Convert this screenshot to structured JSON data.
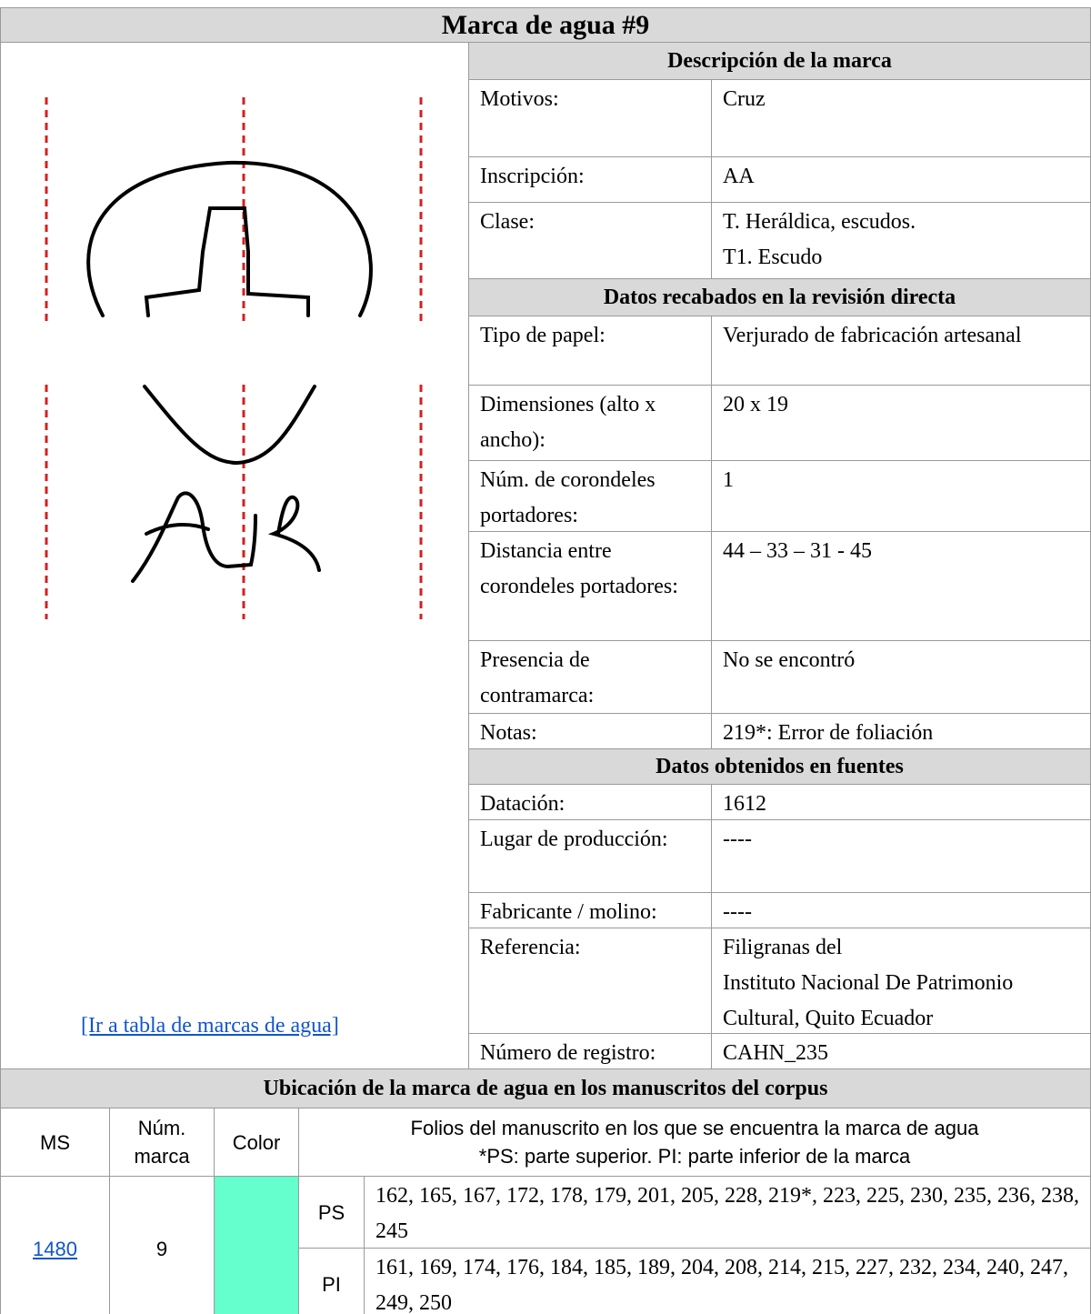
{
  "title": "Marca de agua #9",
  "link": "[Ir a tabla de marcas de agua]",
  "sections": [
    {
      "heading": "Descripción de la marca",
      "rows": [
        [
          "Motivos:",
          [
            "Cruz"
          ]
        ],
        [
          "Inscripción:",
          [
            "AA"
          ]
        ],
        [
          "Clase:",
          [
            "T. Heráldica, escudos.",
            "T1. Escudo"
          ]
        ]
      ]
    },
    {
      "heading": "Datos recabados en la revisión directa",
      "rows": [
        [
          "Tipo de papel:",
          [
            "Verjurado de fabricación artesanal"
          ]
        ],
        [
          "Dimensiones (alto x ancho):",
          [
            "20 x 19"
          ]
        ],
        [
          "Núm. de corondeles portadores:",
          [
            "1"
          ]
        ],
        [
          "Distancia entre corondeles portadores:",
          [
            "44 – 33 – 31 - 45"
          ]
        ],
        [
          "Presencia de contramarca:",
          [
            "No se encontró"
          ]
        ],
        [
          "Notas:",
          [
            "219*: Error de foliación"
          ]
        ]
      ]
    },
    {
      "heading": "Datos obtenidos en fuentes",
      "rows": [
        [
          "Datación:",
          [
            "1612"
          ]
        ],
        [
          "Lugar de producción:",
          [
            "----"
          ]
        ],
        [
          "Fabricante / molino:",
          [
            "----"
          ]
        ],
        [
          "Referencia:",
          [
            "Filigranas del",
            "Instituto Nacional De Patrimonio Cultural, Quito Ecuador"
          ]
        ],
        [
          "Número de registro:",
          [
            "CAHN_235"
          ]
        ]
      ]
    }
  ],
  "location": {
    "heading": "Ubicación de la marca de agua en los manuscritos del corpus",
    "columns": [
      "MS",
      "Núm. marca",
      "Color"
    ],
    "folios_header": [
      "Folios del manuscrito en los que se encuentra la marca de agua",
      "*PS: parte superior. PI: parte inferior de la marca"
    ],
    "rows": [
      {
        "ms": "1480",
        "num": "9",
        "color": "#64ffcc",
        "parts": [
          {
            "label": "PS",
            "folios": "162, 165, 167, 172, 178, 179, 201, 205, 228, 219*, 223, 225, 230, 235, 236, 238, 245"
          },
          {
            "label": "PI",
            "folios": "161, 169, 174, 176, 184, 185, 189, 204, 208, 214, 215, 227, 232, 234, 240, 247, 249, 250"
          }
        ]
      }
    ]
  }
}
